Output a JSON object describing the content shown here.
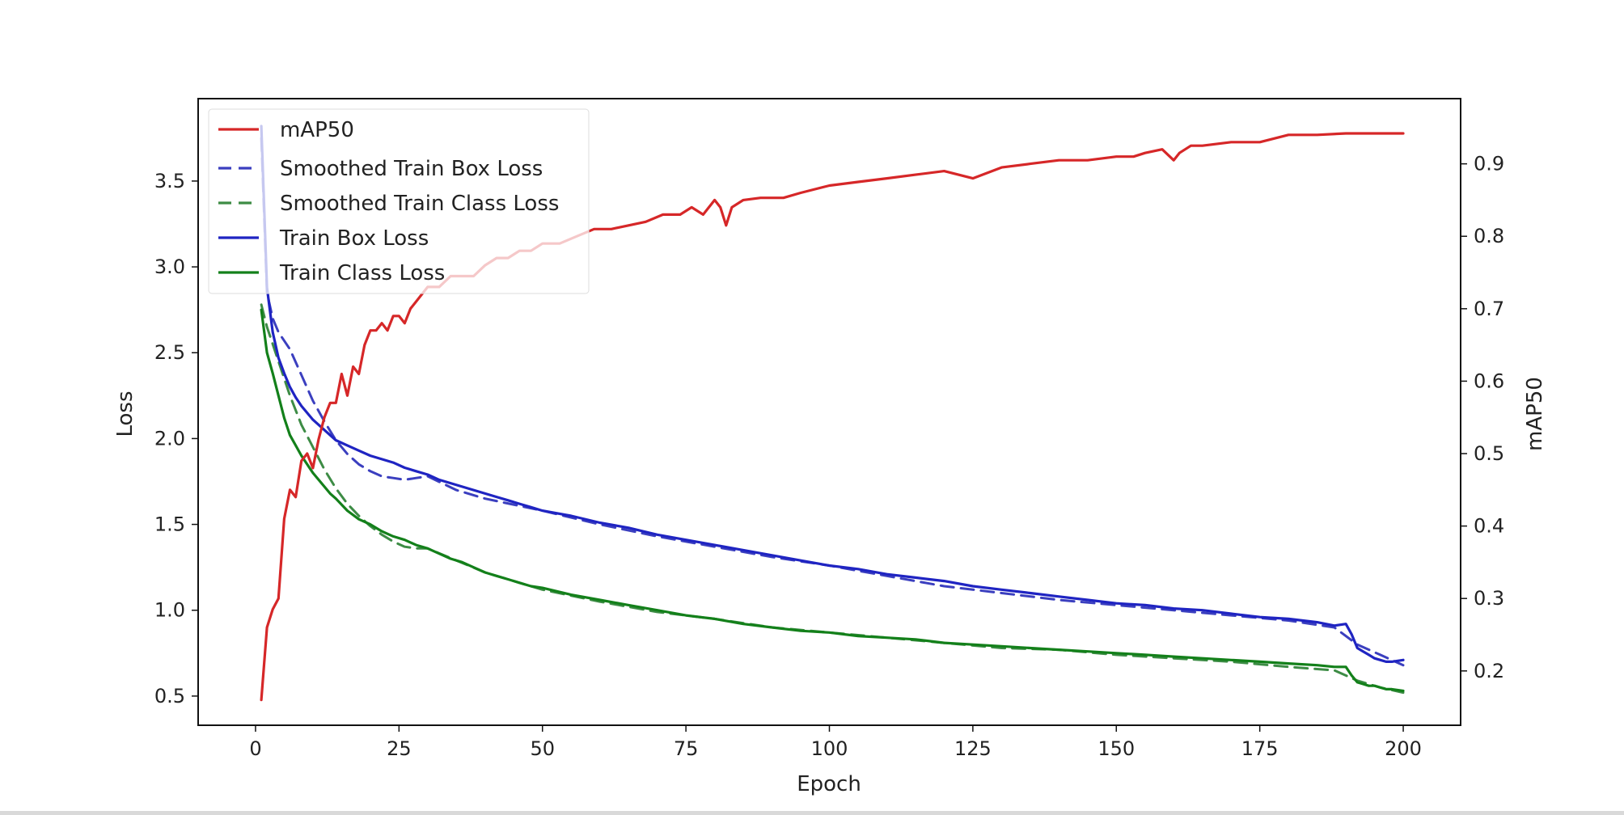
{
  "chart_data": {
    "type": "line",
    "title": "",
    "xlabel": "Epoch",
    "ylabel_left": "Loss",
    "ylabel_right": "mAP50",
    "xlim": [
      -10,
      210
    ],
    "ylim_left": [
      0.33,
      3.98
    ],
    "ylim_right": [
      0.125,
      0.99
    ],
    "xticks": [
      0,
      25,
      50,
      75,
      100,
      125,
      150,
      175,
      200
    ],
    "xtick_labels": [
      "0",
      "25",
      "50",
      "75",
      "100",
      "125",
      "150",
      "175",
      "200"
    ],
    "yticks_left": [
      0.5,
      1.0,
      1.5,
      2.0,
      2.5,
      3.0,
      3.5
    ],
    "ytick_labels_left": [
      "0.5",
      "1.0",
      "1.5",
      "2.0",
      "2.5",
      "3.0",
      "3.5"
    ],
    "yticks_right": [
      0.2,
      0.3,
      0.4,
      0.5,
      0.6,
      0.7,
      0.8,
      0.9
    ],
    "ytick_labels_right": [
      "0.2",
      "0.3",
      "0.4",
      "0.5",
      "0.6",
      "0.7",
      "0.8",
      "0.9"
    ],
    "grid": false,
    "legend_position": "top-left",
    "series": [
      {
        "name": "mAP50",
        "axis": "right",
        "color": "#d62728",
        "dash": "solid",
        "x": [
          1,
          2,
          3,
          4,
          5,
          6,
          7,
          8,
          9,
          10,
          11,
          12,
          13,
          14,
          15,
          16,
          17,
          18,
          19,
          20,
          21,
          22,
          23,
          24,
          25,
          26,
          27,
          28,
          29,
          30,
          32,
          34,
          36,
          38,
          40,
          42,
          44,
          46,
          48,
          50,
          53,
          56,
          59,
          62,
          65,
          68,
          71,
          74,
          76,
          78,
          79,
          80,
          81,
          82,
          83,
          85,
          88,
          92,
          95,
          100,
          105,
          110,
          115,
          120,
          125,
          130,
          135,
          140,
          145,
          150,
          153,
          155,
          158,
          160,
          161,
          163,
          165,
          170,
          175,
          180,
          185,
          190,
          195,
          200
        ],
        "y": [
          0.16,
          0.26,
          0.285,
          0.3,
          0.41,
          0.45,
          0.44,
          0.49,
          0.5,
          0.48,
          0.52,
          0.55,
          0.57,
          0.57,
          0.61,
          0.58,
          0.62,
          0.61,
          0.65,
          0.67,
          0.67,
          0.68,
          0.67,
          0.69,
          0.69,
          0.68,
          0.7,
          0.71,
          0.72,
          0.73,
          0.73,
          0.745,
          0.745,
          0.745,
          0.76,
          0.77,
          0.77,
          0.78,
          0.78,
          0.79,
          0.79,
          0.8,
          0.81,
          0.81,
          0.815,
          0.82,
          0.83,
          0.83,
          0.84,
          0.83,
          0.84,
          0.85,
          0.84,
          0.815,
          0.84,
          0.85,
          0.853,
          0.853,
          0.86,
          0.87,
          0.875,
          0.88,
          0.885,
          0.89,
          0.88,
          0.895,
          0.9,
          0.905,
          0.905,
          0.91,
          0.91,
          0.915,
          0.92,
          0.905,
          0.915,
          0.925,
          0.925,
          0.93,
          0.93,
          0.94,
          0.94,
          0.942,
          0.942,
          0.942
        ]
      },
      {
        "name": "Smoothed Train Box Loss",
        "axis": "left",
        "color": "#3b3fbf",
        "dash": "dashed",
        "x": [
          1,
          2,
          3,
          4,
          6,
          8,
          10,
          12,
          14,
          16,
          18,
          20,
          22,
          24,
          26,
          28,
          30,
          35,
          40,
          50,
          60,
          70,
          80,
          90,
          100,
          110,
          120,
          130,
          140,
          150,
          160,
          170,
          180,
          188,
          192,
          196,
          200
        ],
        "y": [
          3.75,
          2.85,
          2.7,
          2.62,
          2.52,
          2.37,
          2.22,
          2.1,
          1.99,
          1.91,
          1.85,
          1.81,
          1.78,
          1.77,
          1.76,
          1.77,
          1.78,
          1.7,
          1.65,
          1.58,
          1.5,
          1.43,
          1.37,
          1.31,
          1.26,
          1.2,
          1.14,
          1.1,
          1.06,
          1.03,
          1.0,
          0.97,
          0.94,
          0.9,
          0.8,
          0.74,
          0.68
        ]
      },
      {
        "name": "Smoothed Train Class Loss",
        "axis": "left",
        "color": "#3d8c45",
        "dash": "dashed",
        "x": [
          1,
          2,
          3,
          4,
          6,
          8,
          10,
          12,
          14,
          16,
          18,
          20,
          22,
          24,
          26,
          28,
          30,
          35,
          40,
          50,
          60,
          70,
          80,
          90,
          100,
          110,
          120,
          130,
          140,
          150,
          160,
          170,
          180,
          188,
          192,
          196,
          200
        ],
        "y": [
          2.78,
          2.65,
          2.55,
          2.45,
          2.25,
          2.08,
          1.95,
          1.82,
          1.71,
          1.62,
          1.55,
          1.49,
          1.44,
          1.4,
          1.37,
          1.36,
          1.36,
          1.29,
          1.22,
          1.12,
          1.05,
          0.99,
          0.95,
          0.9,
          0.87,
          0.84,
          0.81,
          0.78,
          0.77,
          0.74,
          0.72,
          0.7,
          0.67,
          0.65,
          0.59,
          0.55,
          0.52
        ]
      },
      {
        "name": "Train Box Loss",
        "axis": "left",
        "color": "#1f24c2",
        "dash": "solid",
        "x": [
          1,
          2,
          3,
          4,
          5,
          6,
          7,
          8,
          9,
          10,
          11,
          12,
          13,
          14,
          16,
          18,
          20,
          22,
          24,
          26,
          28,
          30,
          32,
          34,
          36,
          38,
          40,
          42,
          44,
          46,
          48,
          50,
          55,
          60,
          65,
          70,
          75,
          80,
          85,
          90,
          95,
          100,
          105,
          110,
          115,
          120,
          125,
          130,
          135,
          140,
          145,
          150,
          155,
          160,
          165,
          170,
          175,
          180,
          185,
          188,
          190,
          191,
          192,
          193,
          194,
          195,
          196,
          197,
          198,
          200
        ],
        "y": [
          3.82,
          2.88,
          2.62,
          2.47,
          2.38,
          2.3,
          2.24,
          2.19,
          2.15,
          2.11,
          2.08,
          2.05,
          2.02,
          1.99,
          1.96,
          1.93,
          1.9,
          1.88,
          1.86,
          1.83,
          1.81,
          1.79,
          1.76,
          1.74,
          1.72,
          1.7,
          1.68,
          1.66,
          1.64,
          1.62,
          1.6,
          1.58,
          1.55,
          1.51,
          1.48,
          1.44,
          1.41,
          1.38,
          1.35,
          1.32,
          1.29,
          1.26,
          1.24,
          1.21,
          1.19,
          1.17,
          1.14,
          1.12,
          1.1,
          1.08,
          1.06,
          1.04,
          1.03,
          1.01,
          1.0,
          0.98,
          0.96,
          0.95,
          0.93,
          0.91,
          0.92,
          0.86,
          0.78,
          0.76,
          0.74,
          0.72,
          0.71,
          0.7,
          0.7,
          0.71
        ]
      },
      {
        "name": "Train Class Loss",
        "axis": "left",
        "color": "#13801a",
        "dash": "solid",
        "x": [
          1,
          2,
          3,
          4,
          5,
          6,
          7,
          8,
          9,
          10,
          11,
          12,
          13,
          14,
          16,
          18,
          20,
          22,
          24,
          26,
          28,
          30,
          32,
          34,
          36,
          38,
          40,
          42,
          44,
          46,
          48,
          50,
          55,
          60,
          65,
          70,
          75,
          80,
          85,
          90,
          95,
          100,
          105,
          110,
          115,
          120,
          125,
          130,
          135,
          140,
          145,
          150,
          155,
          160,
          165,
          170,
          175,
          180,
          185,
          188,
          190,
          191,
          192,
          193,
          194,
          195,
          196,
          197,
          198,
          200
        ],
        "y": [
          2.75,
          2.5,
          2.38,
          2.25,
          2.12,
          2.02,
          1.96,
          1.9,
          1.85,
          1.8,
          1.76,
          1.72,
          1.68,
          1.65,
          1.58,
          1.53,
          1.5,
          1.46,
          1.43,
          1.41,
          1.38,
          1.36,
          1.33,
          1.3,
          1.28,
          1.25,
          1.22,
          1.2,
          1.18,
          1.16,
          1.14,
          1.13,
          1.09,
          1.06,
          1.03,
          1.0,
          0.97,
          0.95,
          0.92,
          0.9,
          0.88,
          0.87,
          0.85,
          0.84,
          0.83,
          0.81,
          0.8,
          0.79,
          0.78,
          0.77,
          0.76,
          0.75,
          0.74,
          0.73,
          0.72,
          0.71,
          0.7,
          0.69,
          0.68,
          0.67,
          0.67,
          0.62,
          0.58,
          0.57,
          0.56,
          0.56,
          0.55,
          0.54,
          0.54,
          0.53
        ]
      }
    ]
  }
}
